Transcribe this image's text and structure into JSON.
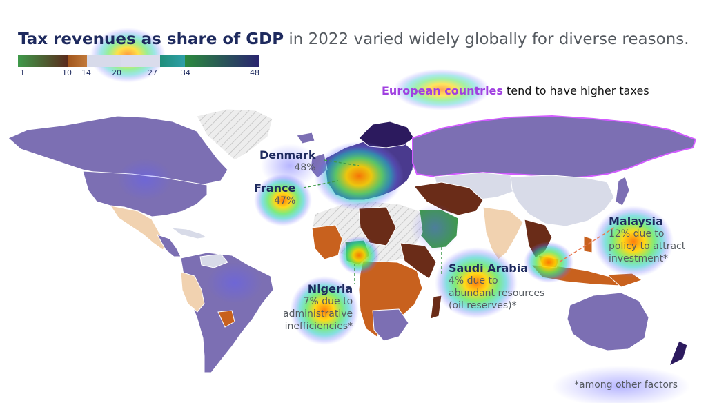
{
  "title": {
    "highlight": "Tax revenues as share of GDP",
    "rest": " in 2022 varied widely globally for diverse reasons."
  },
  "legend": {
    "ticks": [
      "1",
      "10",
      "14",
      "20",
      "27",
      "34",
      "48"
    ],
    "bands": [
      {
        "from": 1,
        "to": 10,
        "colors": [
          "#3f9a4a",
          "#5a2a1c"
        ]
      },
      {
        "from": 10,
        "to": 14,
        "colors": [
          "#a0551c",
          "#c27a3a"
        ]
      },
      {
        "from": 14,
        "to": 20,
        "colors": [
          "#cfd3e0",
          "#d7daea"
        ]
      },
      {
        "from": 20,
        "to": 27,
        "colors": [
          "#dde0ee",
          "#dadcec"
        ]
      },
      {
        "from": 27,
        "to": 34,
        "colors": [
          "#1f8e7a",
          "#2f9fa8"
        ]
      },
      {
        "from": 34,
        "to": 48,
        "colors": [
          "#2b8a3e",
          "#2a2470"
        ]
      }
    ]
  },
  "callouts": {
    "europe": {
      "highlight": "European countries",
      "rest": " tend to have higher taxes"
    },
    "denmark": {
      "name": "Denmark",
      "value": "48%"
    },
    "france": {
      "name": "France",
      "value": "47%"
    },
    "nigeria": {
      "name": "Nigeria",
      "line1": "7% due to",
      "line2": "administrative",
      "line3": "inefficiencies*"
    },
    "saudi": {
      "name": "Saudi Arabia",
      "line1": "4% due to",
      "line2": "abundant resources",
      "line3": "(oil reserves)*"
    },
    "malaysia": {
      "name": "Malaysia",
      "line1": "12% due to",
      "line2": "policy to attract",
      "line3": "investment*"
    }
  },
  "footnote": "*among other factors",
  "colors": {
    "accent_eu": "#a040e0",
    "title_dark": "#1e2a5e",
    "land_default": "#7c6fb3",
    "land_low": "#6a2c18",
    "land_mid": "#c87a3e",
    "land_light": "#f1d2b0",
    "land_pale": "#d8dbe8",
    "europe_high": "#2c1a5e",
    "no_data": "#e3e3e3"
  }
}
